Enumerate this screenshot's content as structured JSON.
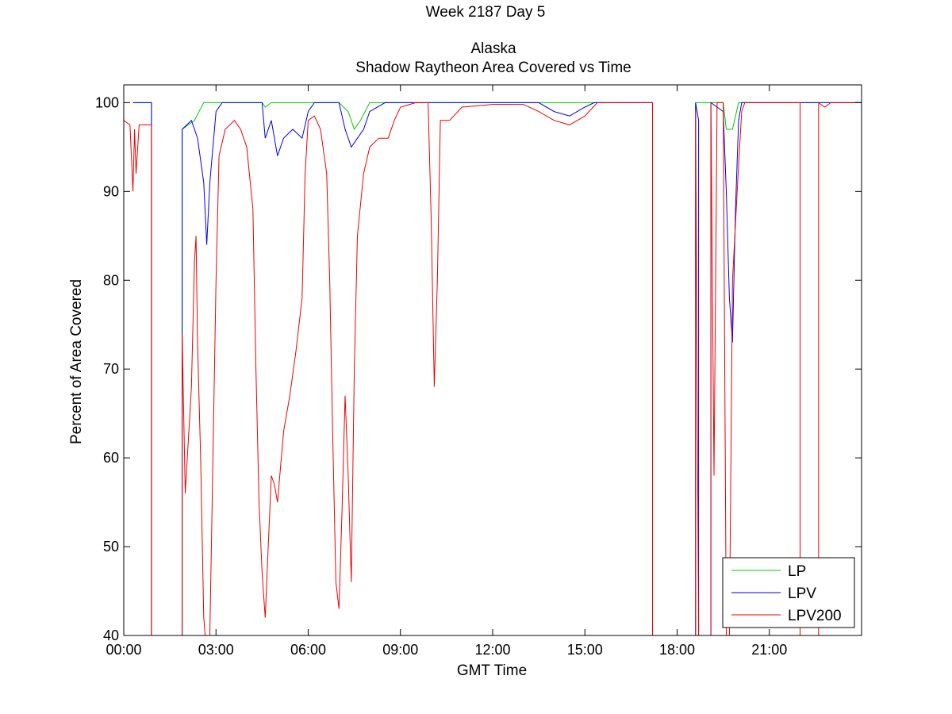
{
  "chart_data": {
    "type": "line",
    "title_lines": [
      "Week 2187 Day 5",
      "Alaska",
      "Shadow Raytheon Area Covered vs Time"
    ],
    "xlabel": "GMT Time",
    "ylabel": "Percent of Area Covered",
    "x_units": "hours",
    "xlim": [
      0,
      24
    ],
    "ylim": [
      40,
      102
    ],
    "xticks": [
      {
        "value": 0,
        "label": "00:00"
      },
      {
        "value": 3,
        "label": "03:00"
      },
      {
        "value": 6,
        "label": "06:00"
      },
      {
        "value": 9,
        "label": "09:00"
      },
      {
        "value": 12,
        "label": "12:00"
      },
      {
        "value": 15,
        "label": "15:00"
      },
      {
        "value": 18,
        "label": "18:00"
      },
      {
        "value": 21,
        "label": "21:00"
      }
    ],
    "yticks": [
      {
        "value": 40,
        "label": "40"
      },
      {
        "value": 50,
        "label": "50"
      },
      {
        "value": 60,
        "label": "60"
      },
      {
        "value": 70,
        "label": "70"
      },
      {
        "value": 80,
        "label": "80"
      },
      {
        "value": 90,
        "label": "90"
      },
      {
        "value": 100,
        "label": "100"
      }
    ],
    "grid": false,
    "legend_position": "bottom-right",
    "series": [
      {
        "name": "LP",
        "color": "#00cc00",
        "points": [
          [
            0.3,
            100
          ],
          [
            0.9,
            100
          ],
          [
            0.9,
            40
          ],
          [
            1.9,
            40
          ],
          [
            1.9,
            97
          ],
          [
            2.3,
            98
          ],
          [
            2.6,
            100
          ],
          [
            4.5,
            100
          ],
          [
            4.6,
            99.5
          ],
          [
            4.8,
            100
          ],
          [
            7.0,
            100
          ],
          [
            7.3,
            99
          ],
          [
            7.5,
            97
          ],
          [
            7.7,
            98
          ],
          [
            8.0,
            100
          ],
          [
            17.2,
            100
          ],
          [
            17.2,
            40
          ],
          [
            18.6,
            40
          ],
          [
            18.6,
            100
          ],
          [
            19.5,
            100
          ],
          [
            19.6,
            97
          ],
          [
            19.8,
            97
          ],
          [
            20.0,
            100
          ],
          [
            24,
            100
          ]
        ]
      },
      {
        "name": "LPV",
        "color": "#0000ee",
        "points": [
          [
            0.3,
            100
          ],
          [
            0.9,
            100
          ],
          [
            0.9,
            40
          ],
          [
            1.9,
            40
          ],
          [
            1.9,
            97
          ],
          [
            2.2,
            98
          ],
          [
            2.4,
            96
          ],
          [
            2.6,
            91
          ],
          [
            2.7,
            84
          ],
          [
            2.8,
            91
          ],
          [
            3.0,
            99
          ],
          [
            3.2,
            100
          ],
          [
            4.5,
            100
          ],
          [
            4.6,
            96
          ],
          [
            4.8,
            98
          ],
          [
            5.0,
            94
          ],
          [
            5.2,
            96
          ],
          [
            5.5,
            97
          ],
          [
            5.8,
            96
          ],
          [
            6.0,
            99
          ],
          [
            6.2,
            100
          ],
          [
            7.0,
            100
          ],
          [
            7.2,
            97
          ],
          [
            7.4,
            95
          ],
          [
            7.6,
            96
          ],
          [
            7.8,
            97
          ],
          [
            8.0,
            99
          ],
          [
            8.5,
            100
          ],
          [
            13.5,
            100
          ],
          [
            14.0,
            99
          ],
          [
            14.5,
            98.5
          ],
          [
            15.0,
            99.5
          ],
          [
            15.3,
            100
          ],
          [
            17.2,
            100
          ],
          [
            17.2,
            40
          ],
          [
            18.6,
            40
          ],
          [
            18.6,
            100
          ],
          [
            18.7,
            98
          ],
          [
            18.7,
            40
          ],
          [
            19.1,
            40
          ],
          [
            19.1,
            100
          ],
          [
            19.5,
            99
          ],
          [
            19.6,
            90
          ],
          [
            19.7,
            78
          ],
          [
            19.8,
            73
          ],
          [
            19.9,
            88
          ],
          [
            20.0,
            98
          ],
          [
            20.1,
            100
          ],
          [
            24,
            100
          ]
        ]
      },
      {
        "name": "LPV200",
        "color": "#ee0000",
        "points": [
          [
            0,
            98
          ],
          [
            0.2,
            97.5
          ],
          [
            0.3,
            90
          ],
          [
            0.35,
            97
          ],
          [
            0.4,
            92
          ],
          [
            0.5,
            97.5
          ],
          [
            0.9,
            97.5
          ],
          [
            0.9,
            40
          ],
          [
            1.9,
            40
          ],
          [
            1.9,
            74
          ],
          [
            2.0,
            56
          ],
          [
            2.1,
            62
          ],
          [
            2.2,
            68
          ],
          [
            2.3,
            82
          ],
          [
            2.35,
            85
          ],
          [
            2.4,
            73
          ],
          [
            2.5,
            60
          ],
          [
            2.6,
            42
          ],
          [
            2.65,
            40
          ],
          [
            2.8,
            40
          ],
          [
            2.9,
            60
          ],
          [
            3.0,
            80
          ],
          [
            3.1,
            94
          ],
          [
            3.3,
            97
          ],
          [
            3.6,
            98
          ],
          [
            3.8,
            97
          ],
          [
            4.0,
            95
          ],
          [
            4.2,
            88
          ],
          [
            4.3,
            70
          ],
          [
            4.4,
            55
          ],
          [
            4.5,
            47
          ],
          [
            4.6,
            42
          ],
          [
            4.7,
            50
          ],
          [
            4.8,
            58
          ],
          [
            4.9,
            57
          ],
          [
            5.0,
            55
          ],
          [
            5.2,
            63
          ],
          [
            5.4,
            67
          ],
          [
            5.6,
            72
          ],
          [
            5.8,
            78
          ],
          [
            5.9,
            92
          ],
          [
            6.0,
            98
          ],
          [
            6.2,
            98.5
          ],
          [
            6.4,
            97
          ],
          [
            6.6,
            92
          ],
          [
            6.7,
            80
          ],
          [
            6.8,
            62
          ],
          [
            6.9,
            46
          ],
          [
            7.0,
            43
          ],
          [
            7.1,
            54
          ],
          [
            7.2,
            67
          ],
          [
            7.3,
            58
          ],
          [
            7.4,
            46
          ],
          [
            7.5,
            70
          ],
          [
            7.6,
            85
          ],
          [
            7.8,
            92
          ],
          [
            8.0,
            95
          ],
          [
            8.3,
            96
          ],
          [
            8.6,
            96
          ],
          [
            8.8,
            98
          ],
          [
            9.0,
            99.5
          ],
          [
            9.5,
            100
          ],
          [
            9.9,
            100
          ],
          [
            10.0,
            87
          ],
          [
            10.1,
            68
          ],
          [
            10.2,
            80
          ],
          [
            10.3,
            98
          ],
          [
            10.6,
            98
          ],
          [
            11.0,
            99.5
          ],
          [
            12.0,
            99.8
          ],
          [
            13.0,
            99.8
          ],
          [
            13.5,
            99
          ],
          [
            14.0,
            98
          ],
          [
            14.5,
            97.5
          ],
          [
            15.0,
            98.5
          ],
          [
            15.4,
            100
          ],
          [
            17.2,
            100
          ],
          [
            17.2,
            40
          ],
          [
            18.6,
            40
          ],
          [
            18.6,
            99
          ],
          [
            18.7,
            40
          ],
          [
            19.1,
            40
          ],
          [
            19.1,
            100
          ],
          [
            19.2,
            58
          ],
          [
            19.3,
            100
          ],
          [
            19.5,
            100
          ],
          [
            19.6,
            40
          ],
          [
            19.7,
            40
          ],
          [
            19.8,
            80
          ],
          [
            20.0,
            93
          ],
          [
            20.1,
            99
          ],
          [
            20.2,
            100
          ],
          [
            22.0,
            100
          ],
          [
            22.0,
            40
          ],
          [
            22.6,
            40
          ],
          [
            22.6,
            100
          ],
          [
            22.8,
            99.5
          ],
          [
            23.0,
            100
          ],
          [
            24,
            100
          ]
        ]
      }
    ]
  }
}
